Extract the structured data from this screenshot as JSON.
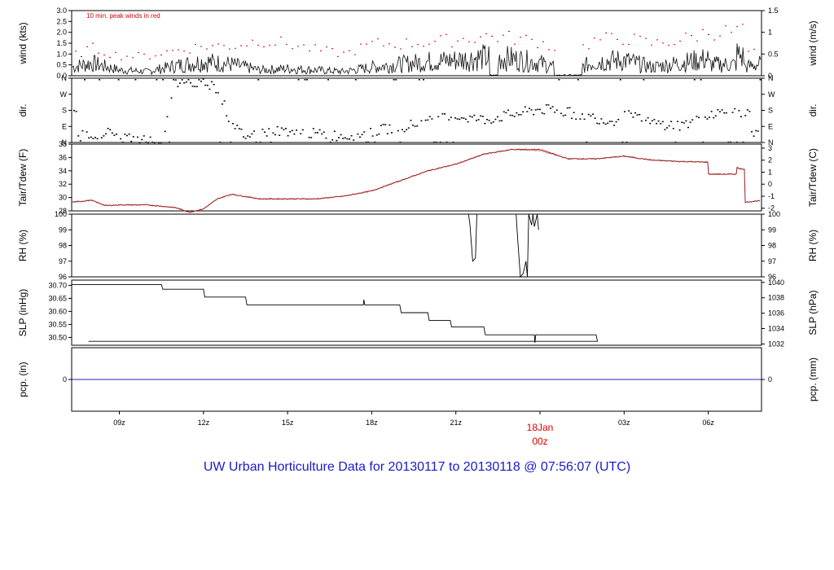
{
  "footer": {
    "title": "UW Urban Horticulture Data for 20130117  to  20130118 @ 07:56:07  (UTC)"
  },
  "colors": {
    "frame": "#000000",
    "peak": "#dd0000",
    "temp": "#cc1111",
    "precip": "#2222cc",
    "day_label": "#dd0000",
    "title": "#1a1acd"
  },
  "chart_data": [
    {
      "type": "line",
      "panel": "wind",
      "ylabel": "wind (kts)",
      "ylabel_right": "wind (m/s)",
      "annotation": "10 min. peak winds in red",
      "ylim": [
        0,
        3.0
      ],
      "ylim_right": [
        0,
        1.5
      ],
      "yticks": [
        "0.0",
        "0.5",
        "1.0",
        "1.5",
        "2.0",
        "2.5",
        "3.0"
      ],
      "yticks_right": [
        "0",
        "0.5",
        "1",
        "1.5"
      ],
      "grid": false,
      "x": [
        7.3,
        8.0,
        9.0,
        10.0,
        11.0,
        12.0,
        13.0,
        14.0,
        15.0,
        16.0,
        17.0,
        18.0,
        19.0,
        20.0,
        21.0,
        22.0,
        23.0,
        0.0,
        1.0,
        2.0,
        3.0,
        4.0,
        5.0,
        6.0,
        7.0,
        7.9
      ],
      "series": [
        {
          "values": [
            0.6,
            0.9,
            0.4,
            0.3,
            0.7,
            1.0,
            0.8,
            0.4,
            0.5,
            0.4,
            0.3,
            0.6,
            0.8,
            1.0,
            1.1,
            1.3,
            1.2,
            0.9,
            0.3,
            1.0,
            1.1,
            0.6,
            0.9,
            1.2,
            1.5,
            0.8
          ]
        },
        {
          "values": [
            1.0,
            1.4,
            1.0,
            1.0,
            1.3,
            1.5,
            1.5,
            1.8,
            1.6,
            1.3,
            1.1,
            1.6,
            1.6,
            1.7,
            1.8,
            2.0,
            1.9,
            1.7,
            1.1,
            1.8,
            1.9,
            1.6,
            1.8,
            2.2,
            2.6,
            2.2
          ]
        }
      ]
    },
    {
      "type": "scatter",
      "panel": "direction",
      "ylabel": "dir.",
      "ylabel_right": "dir.",
      "ylim": [
        0,
        360
      ],
      "yticks": [
        "N",
        "E",
        "S",
        "W",
        "N"
      ],
      "x": [
        7.5,
        8.5,
        9.5,
        10.5,
        11.0,
        11.5,
        12.0,
        12.5,
        13.0,
        13.5,
        14.0,
        15.0,
        16.0,
        17.0,
        18.0,
        18.5,
        19.0,
        20.0,
        21.0,
        22.0,
        23.0,
        0.0,
        1.0,
        2.0,
        2.5,
        3.0,
        4.0,
        5.0,
        6.0,
        7.0,
        7.8
      ],
      "values": [
        40,
        60,
        20,
        10,
        340,
        320,
        350,
        300,
        90,
        40,
        60,
        70,
        50,
        40,
        60,
        80,
        90,
        120,
        150,
        130,
        160,
        190,
        170,
        140,
        120,
        160,
        110,
        100,
        140,
        150,
        170
      ]
    },
    {
      "type": "line",
      "panel": "temperature",
      "ylabel": "Tair/Tdew (F)",
      "ylabel_right": "Tair/Tdew (C)",
      "ylim": [
        28,
        38
      ],
      "yticks": [
        "28",
        "30",
        "32",
        "34",
        "36",
        "38"
      ],
      "yticks_right": [
        "-2",
        "-1",
        "0",
        "1",
        "2",
        "3"
      ],
      "x": [
        7.3,
        8.0,
        8.5,
        9.0,
        10.0,
        11.0,
        11.5,
        12.0,
        12.5,
        13.0,
        14.0,
        15.0,
        16.0,
        17.0,
        18.0,
        19.0,
        20.0,
        21.0,
        22.0,
        23.0,
        0.0,
        1.0,
        2.0,
        3.0,
        4.0,
        5.0,
        6.0,
        7.0,
        7.9
      ],
      "series": [
        {
          "name": "Tair",
          "values": [
            29.3,
            29.6,
            28.8,
            28.9,
            28.9,
            28.5,
            27.8,
            28.3,
            29.8,
            30.5,
            29.8,
            29.8,
            29.8,
            30.2,
            31.0,
            32.5,
            34.0,
            35.0,
            36.5,
            37.2,
            37.2,
            35.8,
            35.8,
            36.2,
            35.6,
            35.4,
            35.3,
            34.5,
            33.5
          ]
        },
        {
          "name": "Tdew",
          "values": [
            29.3,
            29.6,
            28.8,
            28.9,
            28.9,
            28.5,
            27.8,
            28.3,
            29.8,
            30.5,
            29.8,
            29.8,
            29.8,
            30.2,
            31.0,
            32.5,
            34.0,
            35.0,
            36.5,
            37.2,
            37.0,
            35.8,
            35.8,
            36.2,
            35.6,
            35.4,
            35.3,
            34.5,
            33.5
          ]
        }
      ]
    },
    {
      "type": "line",
      "panel": "rh",
      "ylabel": "RH (%)",
      "ylabel_right": "RH (%)",
      "ylim": [
        96,
        100
      ],
      "yticks": [
        "96",
        "97",
        "98",
        "99",
        "100"
      ],
      "yticks_right": [
        "96",
        "97",
        "98",
        "99",
        "100"
      ],
      "x": [
        21.45,
        21.5,
        21.6,
        21.7,
        21.75,
        23.15,
        23.2,
        23.3,
        23.4,
        23.5,
        23.55,
        23.6,
        23.7,
        23.75,
        23.8,
        23.9,
        23.95
      ],
      "values": [
        100,
        99.4,
        97.0,
        97.2,
        100,
        100,
        98.5,
        96.0,
        96.2,
        97.0,
        96.0,
        100,
        99.3,
        100,
        99.2,
        100,
        99.0
      ]
    },
    {
      "type": "line",
      "panel": "slp",
      "ylabel": "SLP (inHg)",
      "ylabel_right": "SLP (hPa)",
      "ylim": [
        30.47,
        30.72
      ],
      "yticks": [
        "30.50",
        "30.55",
        "30.60",
        "30.65",
        "30.70"
      ],
      "yticks_right": [
        "1032",
        "1034",
        "1036",
        "1038",
        "1040"
      ],
      "x": [
        7.3,
        10.5,
        10.55,
        12.0,
        12.05,
        13.5,
        13.55,
        17.7,
        17.72,
        17.75,
        17.8,
        19.0,
        19.05,
        20.0,
        20.05,
        20.8,
        20.85,
        22.0,
        22.05,
        23.8,
        23.82,
        23.85,
        23.9,
        2.0,
        2.05,
        7.9
      ],
      "values": [
        30.703,
        30.703,
        30.685,
        30.685,
        30.655,
        30.655,
        30.625,
        30.625,
        30.645,
        30.625,
        30.625,
        30.625,
        30.595,
        30.595,
        30.565,
        30.565,
        30.54,
        30.54,
        30.51,
        30.51,
        30.48,
        30.51,
        30.51,
        30.51,
        30.485,
        30.485
      ]
    },
    {
      "type": "line",
      "panel": "precip",
      "ylabel": "pcp. (in)",
      "ylabel_right": "pcp. (mm)",
      "ylim": [
        -1,
        1
      ],
      "yticks": [
        "0"
      ],
      "yticks_right": [
        "0"
      ],
      "x": [
        7.3,
        7.9
      ],
      "values": [
        0,
        0
      ]
    }
  ],
  "x_axis": {
    "tick_labels": [
      "09z",
      "12z",
      "15z",
      "18z",
      "21z",
      "03z",
      "06z"
    ],
    "day_marker": {
      "date": "18Jan",
      "time": "00z"
    }
  }
}
